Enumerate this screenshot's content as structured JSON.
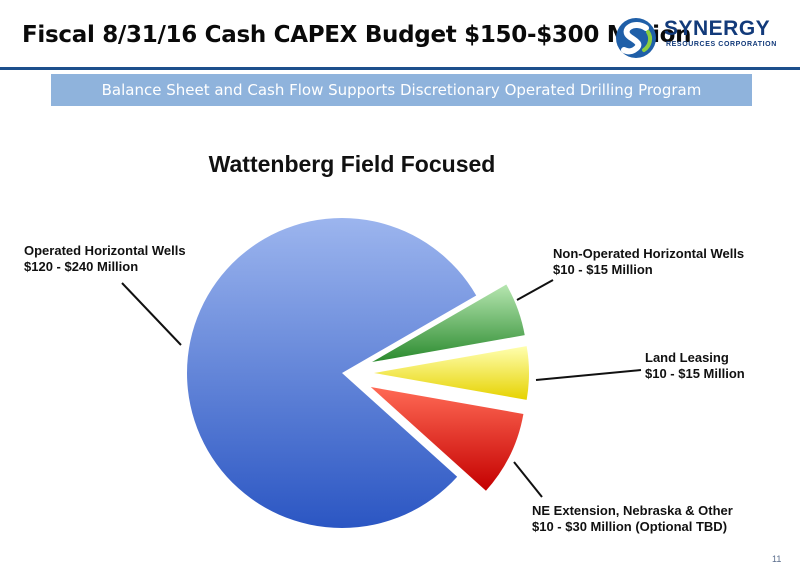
{
  "header": {
    "title": "Fiscal 8/31/16 Cash CAPEX Budget $150-$300 Million",
    "logo_word": "SYNERGY",
    "logo_subtitle": "RESOURCES CORPORATION"
  },
  "banner": {
    "text": "Balance Sheet and Cash Flow Supports Discretionary Operated Drilling Program"
  },
  "chart_data": {
    "type": "pie",
    "title": "Wattenberg Field Focused",
    "slices": [
      {
        "label_line1": "Operated Horizontal Wells",
        "label_line2": "$120 - $240 Million",
        "value": 180,
        "color_light": "#9cb5ee",
        "color_dark": "#2b56c3",
        "exploded": false
      },
      {
        "label_line1": "Non-Operated Horizontal Wells",
        "label_line2": "$10 - $15 Million",
        "value": 12.5,
        "color_light": "#b6e6b0",
        "color_dark": "#2a8a2e",
        "exploded": true
      },
      {
        "label_line1": "Land Leasing",
        "label_line2": "$10 - $15 Million",
        "value": 12.5,
        "color_light": "#ffffb0",
        "color_dark": "#e6d200",
        "exploded": true
      },
      {
        "label_line1": "NE Extension, Nebraska & Other",
        "label_line2": "$10 - $30 Million (Optional TBD)",
        "value": 20,
        "color_light": "#ff6a55",
        "color_dark": "#c40000",
        "exploded": true
      }
    ]
  },
  "footer": {
    "page_number": "11"
  }
}
